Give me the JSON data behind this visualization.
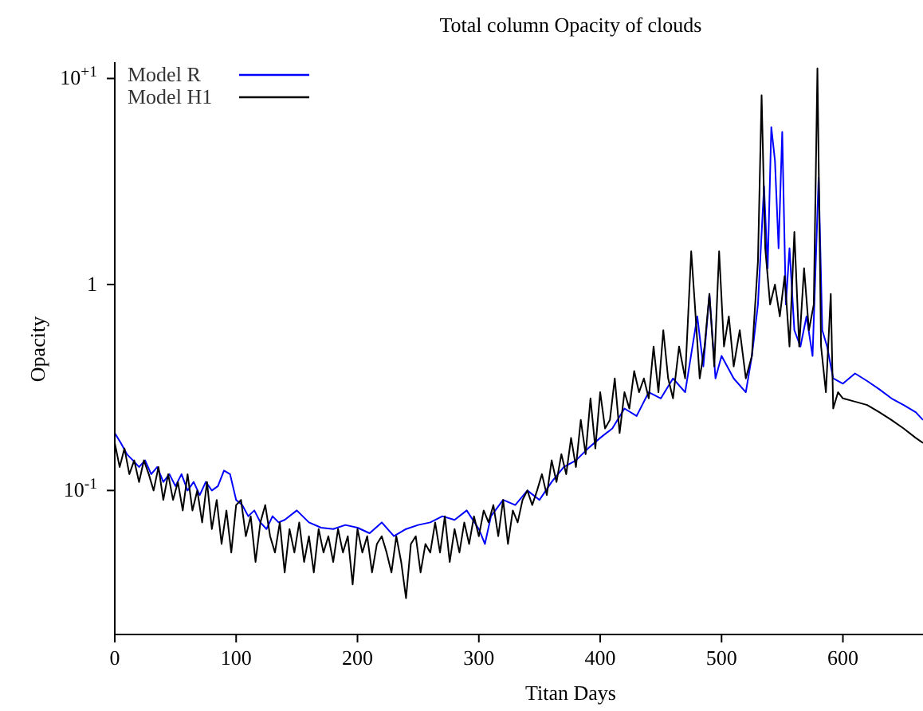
{
  "chart_data": {
    "type": "line",
    "title": "Total column Opacity of clouds",
    "xlabel": "Titan Days",
    "ylabel": "Opacity",
    "log": "y",
    "grid": false,
    "legend": "top left",
    "marker": "none",
    "line_style": "solid",
    "xlim": [
      0,
      666
    ],
    "xticks": [
      0,
      100,
      200,
      300,
      400,
      500,
      600
    ],
    "ylim": [
      0.02,
      12
    ],
    "yticks": [
      {
        "value": 0.1,
        "label": "10$^{-1}$"
      },
      1,
      {
        "value": 10,
        "label": "10$^{+1}$"
      }
    ],
    "series": [
      {
        "name": "Model R",
        "color": "#0000ff",
        "x": [
          0,
          5,
          10,
          15,
          20,
          25,
          30,
          35,
          40,
          45,
          50,
          55,
          60,
          65,
          70,
          75,
          80,
          85,
          90,
          95,
          100,
          105,
          110,
          115,
          120,
          125,
          130,
          135,
          140,
          150,
          160,
          170,
          180,
          190,
          200,
          210,
          220,
          230,
          240,
          250,
          260,
          270,
          280,
          290,
          300,
          305,
          310,
          320,
          330,
          340,
          350,
          360,
          370,
          380,
          390,
          400,
          410,
          420,
          430,
          440,
          450,
          460,
          470,
          480,
          485,
          490,
          495,
          500,
          510,
          520,
          525,
          530,
          535,
          538,
          541,
          544,
          547,
          550,
          553,
          556,
          560,
          565,
          570,
          575,
          580,
          583,
          587,
          592,
          600,
          610,
          620,
          630,
          640,
          650,
          660,
          666
        ],
        "values": [
          0.19,
          0.17,
          0.15,
          0.14,
          0.13,
          0.14,
          0.12,
          0.13,
          0.11,
          0.12,
          0.105,
          0.12,
          0.1,
          0.11,
          0.095,
          0.11,
          0.1,
          0.105,
          0.125,
          0.12,
          0.09,
          0.085,
          0.075,
          0.08,
          0.07,
          0.065,
          0.075,
          0.07,
          0.072,
          0.08,
          0.07,
          0.066,
          0.065,
          0.068,
          0.066,
          0.062,
          0.07,
          0.06,
          0.065,
          0.068,
          0.07,
          0.075,
          0.072,
          0.08,
          0.065,
          0.055,
          0.075,
          0.09,
          0.085,
          0.1,
          0.09,
          0.11,
          0.13,
          0.14,
          0.16,
          0.18,
          0.2,
          0.25,
          0.23,
          0.3,
          0.28,
          0.35,
          0.3,
          0.7,
          0.4,
          0.9,
          0.35,
          0.45,
          0.35,
          0.3,
          0.45,
          0.8,
          3,
          1.2,
          5.8,
          4,
          1.5,
          5.5,
          0.8,
          1.5,
          0.6,
          0.5,
          0.7,
          0.45,
          3.3,
          0.6,
          0.5,
          0.35,
          0.33,
          0.37,
          0.34,
          0.31,
          0.28,
          0.26,
          0.24,
          0.22
        ]
      },
      {
        "name": "Model H1",
        "color": "#000000",
        "x": [
          0,
          4,
          8,
          12,
          16,
          20,
          24,
          28,
          32,
          36,
          40,
          44,
          48,
          52,
          56,
          60,
          64,
          68,
          72,
          76,
          80,
          84,
          88,
          92,
          96,
          100,
          104,
          108,
          112,
          116,
          120,
          124,
          128,
          132,
          136,
          140,
          144,
          148,
          152,
          156,
          160,
          164,
          168,
          172,
          176,
          180,
          184,
          188,
          192,
          196,
          200,
          204,
          208,
          212,
          216,
          220,
          224,
          228,
          232,
          236,
          240,
          244,
          248,
          252,
          256,
          260,
          264,
          268,
          272,
          276,
          280,
          284,
          288,
          292,
          296,
          300,
          304,
          308,
          312,
          316,
          320,
          324,
          328,
          332,
          336,
          340,
          344,
          348,
          352,
          356,
          360,
          364,
          368,
          372,
          376,
          380,
          384,
          388,
          392,
          396,
          400,
          404,
          408,
          412,
          416,
          420,
          424,
          428,
          432,
          436,
          440,
          444,
          448,
          452,
          456,
          460,
          465,
          470,
          475,
          478,
          482,
          486,
          490,
          494,
          498,
          502,
          506,
          510,
          515,
          520,
          525,
          530,
          533,
          536,
          540,
          544,
          548,
          552,
          556,
          560,
          564,
          568,
          572,
          576,
          579,
          582,
          586,
          590,
          592,
          596,
          600,
          610,
          620,
          630,
          640,
          650,
          660,
          666
        ],
        "values": [
          0.17,
          0.13,
          0.16,
          0.12,
          0.14,
          0.11,
          0.14,
          0.12,
          0.1,
          0.13,
          0.09,
          0.12,
          0.09,
          0.11,
          0.08,
          0.12,
          0.08,
          0.1,
          0.07,
          0.11,
          0.065,
          0.09,
          0.055,
          0.08,
          0.05,
          0.085,
          0.09,
          0.06,
          0.075,
          0.045,
          0.07,
          0.085,
          0.06,
          0.05,
          0.07,
          0.04,
          0.065,
          0.05,
          0.07,
          0.045,
          0.06,
          0.04,
          0.065,
          0.05,
          0.06,
          0.045,
          0.065,
          0.05,
          0.06,
          0.035,
          0.065,
          0.05,
          0.06,
          0.04,
          0.055,
          0.06,
          0.05,
          0.04,
          0.06,
          0.045,
          0.03,
          0.055,
          0.06,
          0.04,
          0.055,
          0.05,
          0.07,
          0.05,
          0.075,
          0.045,
          0.065,
          0.05,
          0.07,
          0.055,
          0.075,
          0.06,
          0.08,
          0.07,
          0.085,
          0.06,
          0.09,
          0.055,
          0.08,
          0.07,
          0.09,
          0.1,
          0.085,
          0.1,
          0.12,
          0.095,
          0.14,
          0.11,
          0.15,
          0.12,
          0.18,
          0.13,
          0.22,
          0.15,
          0.28,
          0.16,
          0.3,
          0.2,
          0.22,
          0.35,
          0.19,
          0.3,
          0.25,
          0.38,
          0.3,
          0.35,
          0.28,
          0.5,
          0.3,
          0.6,
          0.35,
          0.28,
          0.5,
          0.35,
          1.45,
          0.8,
          0.35,
          0.5,
          0.9,
          0.4,
          1.45,
          0.5,
          0.7,
          0.4,
          0.6,
          0.35,
          0.45,
          1.3,
          8.3,
          1.5,
          0.8,
          1,
          0.7,
          1.1,
          0.5,
          1.8,
          0.5,
          1.2,
          0.6,
          0.8,
          11.2,
          0.5,
          0.3,
          0.9,
          0.25,
          0.3,
          0.28,
          0.27,
          0.26,
          0.24,
          0.22,
          0.2,
          0.18,
          0.17
        ]
      }
    ]
  }
}
